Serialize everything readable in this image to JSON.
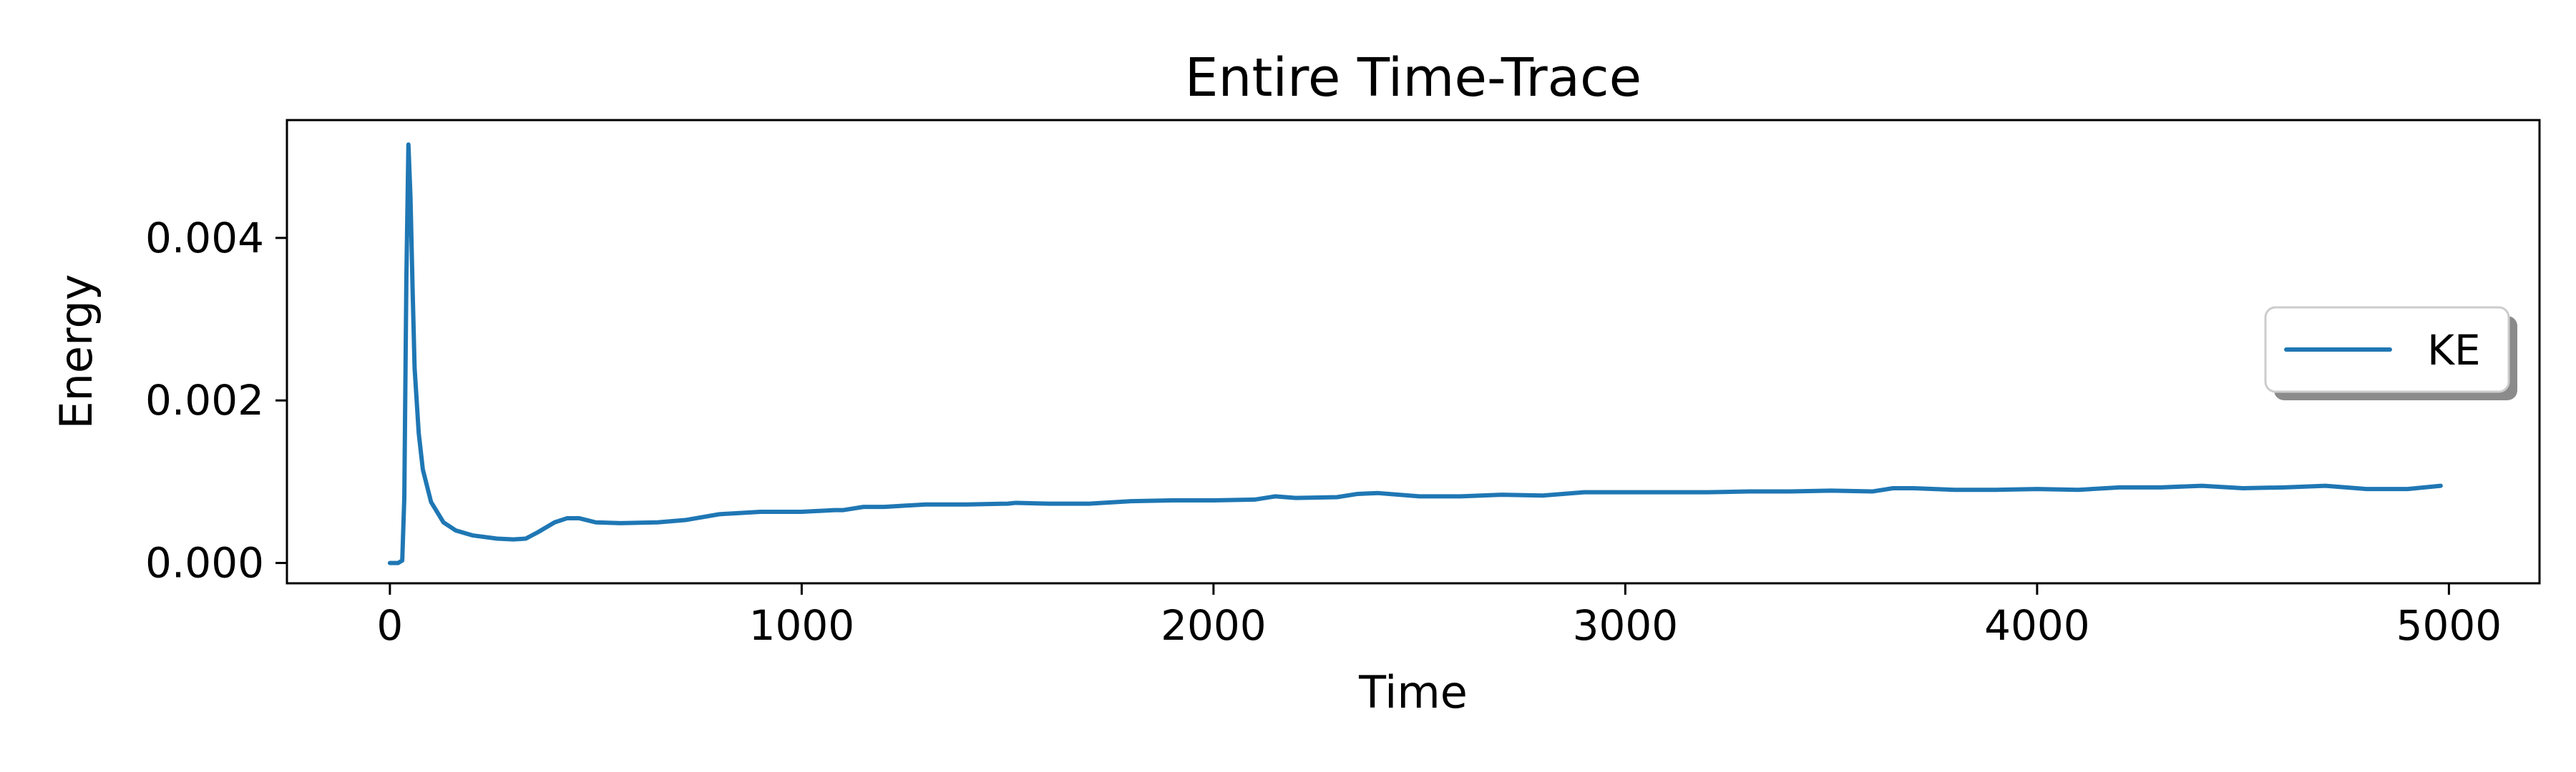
{
  "chart_data": {
    "type": "line",
    "title": "Entire Time-Trace",
    "xlabel": "Time",
    "ylabel": "Energy",
    "xlim": [
      -250,
      5220
    ],
    "ylim": [
      -0.00025,
      0.00545
    ],
    "x_ticks": [
      0,
      1000,
      2000,
      3000,
      4000,
      5000
    ],
    "x_tick_labels": [
      "0",
      "1000",
      "2000",
      "3000",
      "4000",
      "5000"
    ],
    "y_ticks": [
      0.0,
      0.002,
      0.004
    ],
    "y_tick_labels": [
      "0.000",
      "0.002",
      "0.004"
    ],
    "grid": false,
    "legend_placement": "center-right",
    "series": [
      {
        "name": "KE",
        "color": "#1f77b4",
        "x": [
          0,
          20,
          30,
          35,
          40,
          45,
          50,
          55,
          60,
          70,
          80,
          100,
          130,
          160,
          200,
          260,
          300,
          330,
          360,
          400,
          430,
          460,
          500,
          560,
          650,
          720,
          800,
          900,
          1000,
          1080,
          1100,
          1150,
          1200,
          1300,
          1400,
          1500,
          1520,
          1600,
          1700,
          1800,
          1900,
          2000,
          2100,
          2150,
          2200,
          2300,
          2350,
          2400,
          2500,
          2600,
          2700,
          2800,
          2900,
          3000,
          3100,
          3200,
          3300,
          3400,
          3500,
          3600,
          3650,
          3700,
          3800,
          3900,
          4000,
          4100,
          4200,
          4300,
          4400,
          4500,
          4600,
          4700,
          4800,
          4900,
          4980
        ],
        "values": [
          0.0,
          0.0,
          3e-05,
          0.0008,
          0.0035,
          0.00515,
          0.0045,
          0.0034,
          0.0024,
          0.0016,
          0.00115,
          0.00075,
          0.0005,
          0.0004,
          0.00034,
          0.0003,
          0.00029,
          0.0003,
          0.00038,
          0.0005,
          0.00055,
          0.00055,
          0.0005,
          0.00049,
          0.0005,
          0.00053,
          0.0006,
          0.00063,
          0.00063,
          0.00065,
          0.00065,
          0.00069,
          0.00069,
          0.00072,
          0.00072,
          0.00073,
          0.00074,
          0.00073,
          0.00073,
          0.00076,
          0.00077,
          0.00077,
          0.00078,
          0.00082,
          0.0008,
          0.00081,
          0.00085,
          0.00086,
          0.00082,
          0.00082,
          0.00084,
          0.00083,
          0.00087,
          0.00087,
          0.00087,
          0.00087,
          0.00088,
          0.00088,
          0.00089,
          0.00088,
          0.00092,
          0.00092,
          0.0009,
          0.0009,
          0.00091,
          0.0009,
          0.00093,
          0.00093,
          0.00095,
          0.00092,
          0.00093,
          0.00095,
          0.00091,
          0.00091,
          0.00095
        ]
      }
    ]
  }
}
